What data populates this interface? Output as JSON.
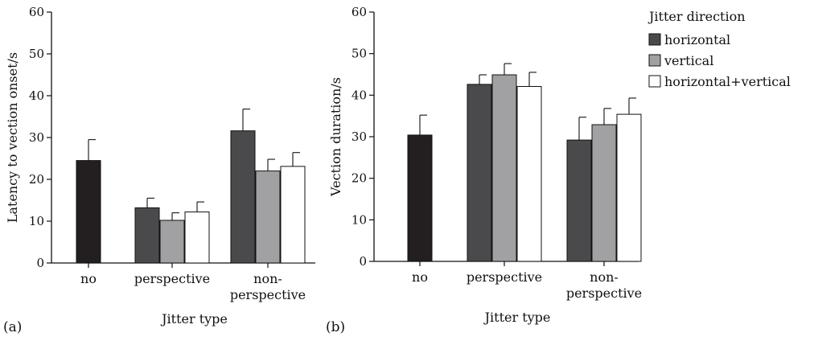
{
  "legend": {
    "title": "Jitter direction",
    "items": [
      {
        "label": "horizontal",
        "color": "#4a4a4c"
      },
      {
        "label": "vertical",
        "color": "#a1a1a3"
      },
      {
        "label": "horizontal+vertical",
        "color": "#ffffff"
      }
    ]
  },
  "colors": {
    "no_jitter": "#231f20",
    "axis": "#111111"
  },
  "chart_data": [
    {
      "type": "bar",
      "panel_label": "(a)",
      "xlabel": "Jitter type",
      "ylabel": "Latency to vection onset/s",
      "ylim": [
        0,
        60
      ],
      "yticks": [
        0,
        10,
        20,
        30,
        40,
        50,
        60
      ],
      "categories": [
        "no",
        "perspective",
        "non-\nperspective"
      ],
      "groups": [
        {
          "category": "no",
          "bars": [
            {
              "series": "none",
              "value": 24.5,
              "error": 5.0
            }
          ]
        },
        {
          "category": "perspective",
          "bars": [
            {
              "series": "horizontal",
              "value": 13.2,
              "error": 2.3
            },
            {
              "series": "vertical",
              "value": 10.2,
              "error": 1.8
            },
            {
              "series": "horizontal+vertical",
              "value": 12.2,
              "error": 2.4
            }
          ]
        },
        {
          "category": "non-\nperspective",
          "bars": [
            {
              "series": "horizontal",
              "value": 31.6,
              "error": 5.2
            },
            {
              "series": "vertical",
              "value": 22.0,
              "error": 2.8
            },
            {
              "series": "horizontal+vertical",
              "value": 23.1,
              "error": 3.3
            }
          ]
        }
      ]
    },
    {
      "type": "bar",
      "panel_label": "(b)",
      "xlabel": "Jitter type",
      "ylabel": "Vection duration/s",
      "ylim": [
        0,
        60
      ],
      "yticks": [
        0,
        10,
        20,
        30,
        40,
        50,
        60
      ],
      "categories": [
        "no",
        "perspective",
        "non-\nperspective"
      ],
      "groups": [
        {
          "category": "no",
          "bars": [
            {
              "series": "none",
              "value": 30.4,
              "error": 4.8
            }
          ]
        },
        {
          "category": "perspective",
          "bars": [
            {
              "series": "horizontal",
              "value": 42.6,
              "error": 2.3
            },
            {
              "series": "vertical",
              "value": 44.9,
              "error": 2.7
            },
            {
              "series": "horizontal+vertical",
              "value": 42.1,
              "error": 3.4
            }
          ]
        },
        {
          "category": "non-\nperspective",
          "bars": [
            {
              "series": "horizontal",
              "value": 29.2,
              "error": 5.5
            },
            {
              "series": "vertical",
              "value": 32.9,
              "error": 3.9
            },
            {
              "series": "horizontal+vertical",
              "value": 35.4,
              "error": 3.9
            }
          ]
        }
      ]
    }
  ]
}
